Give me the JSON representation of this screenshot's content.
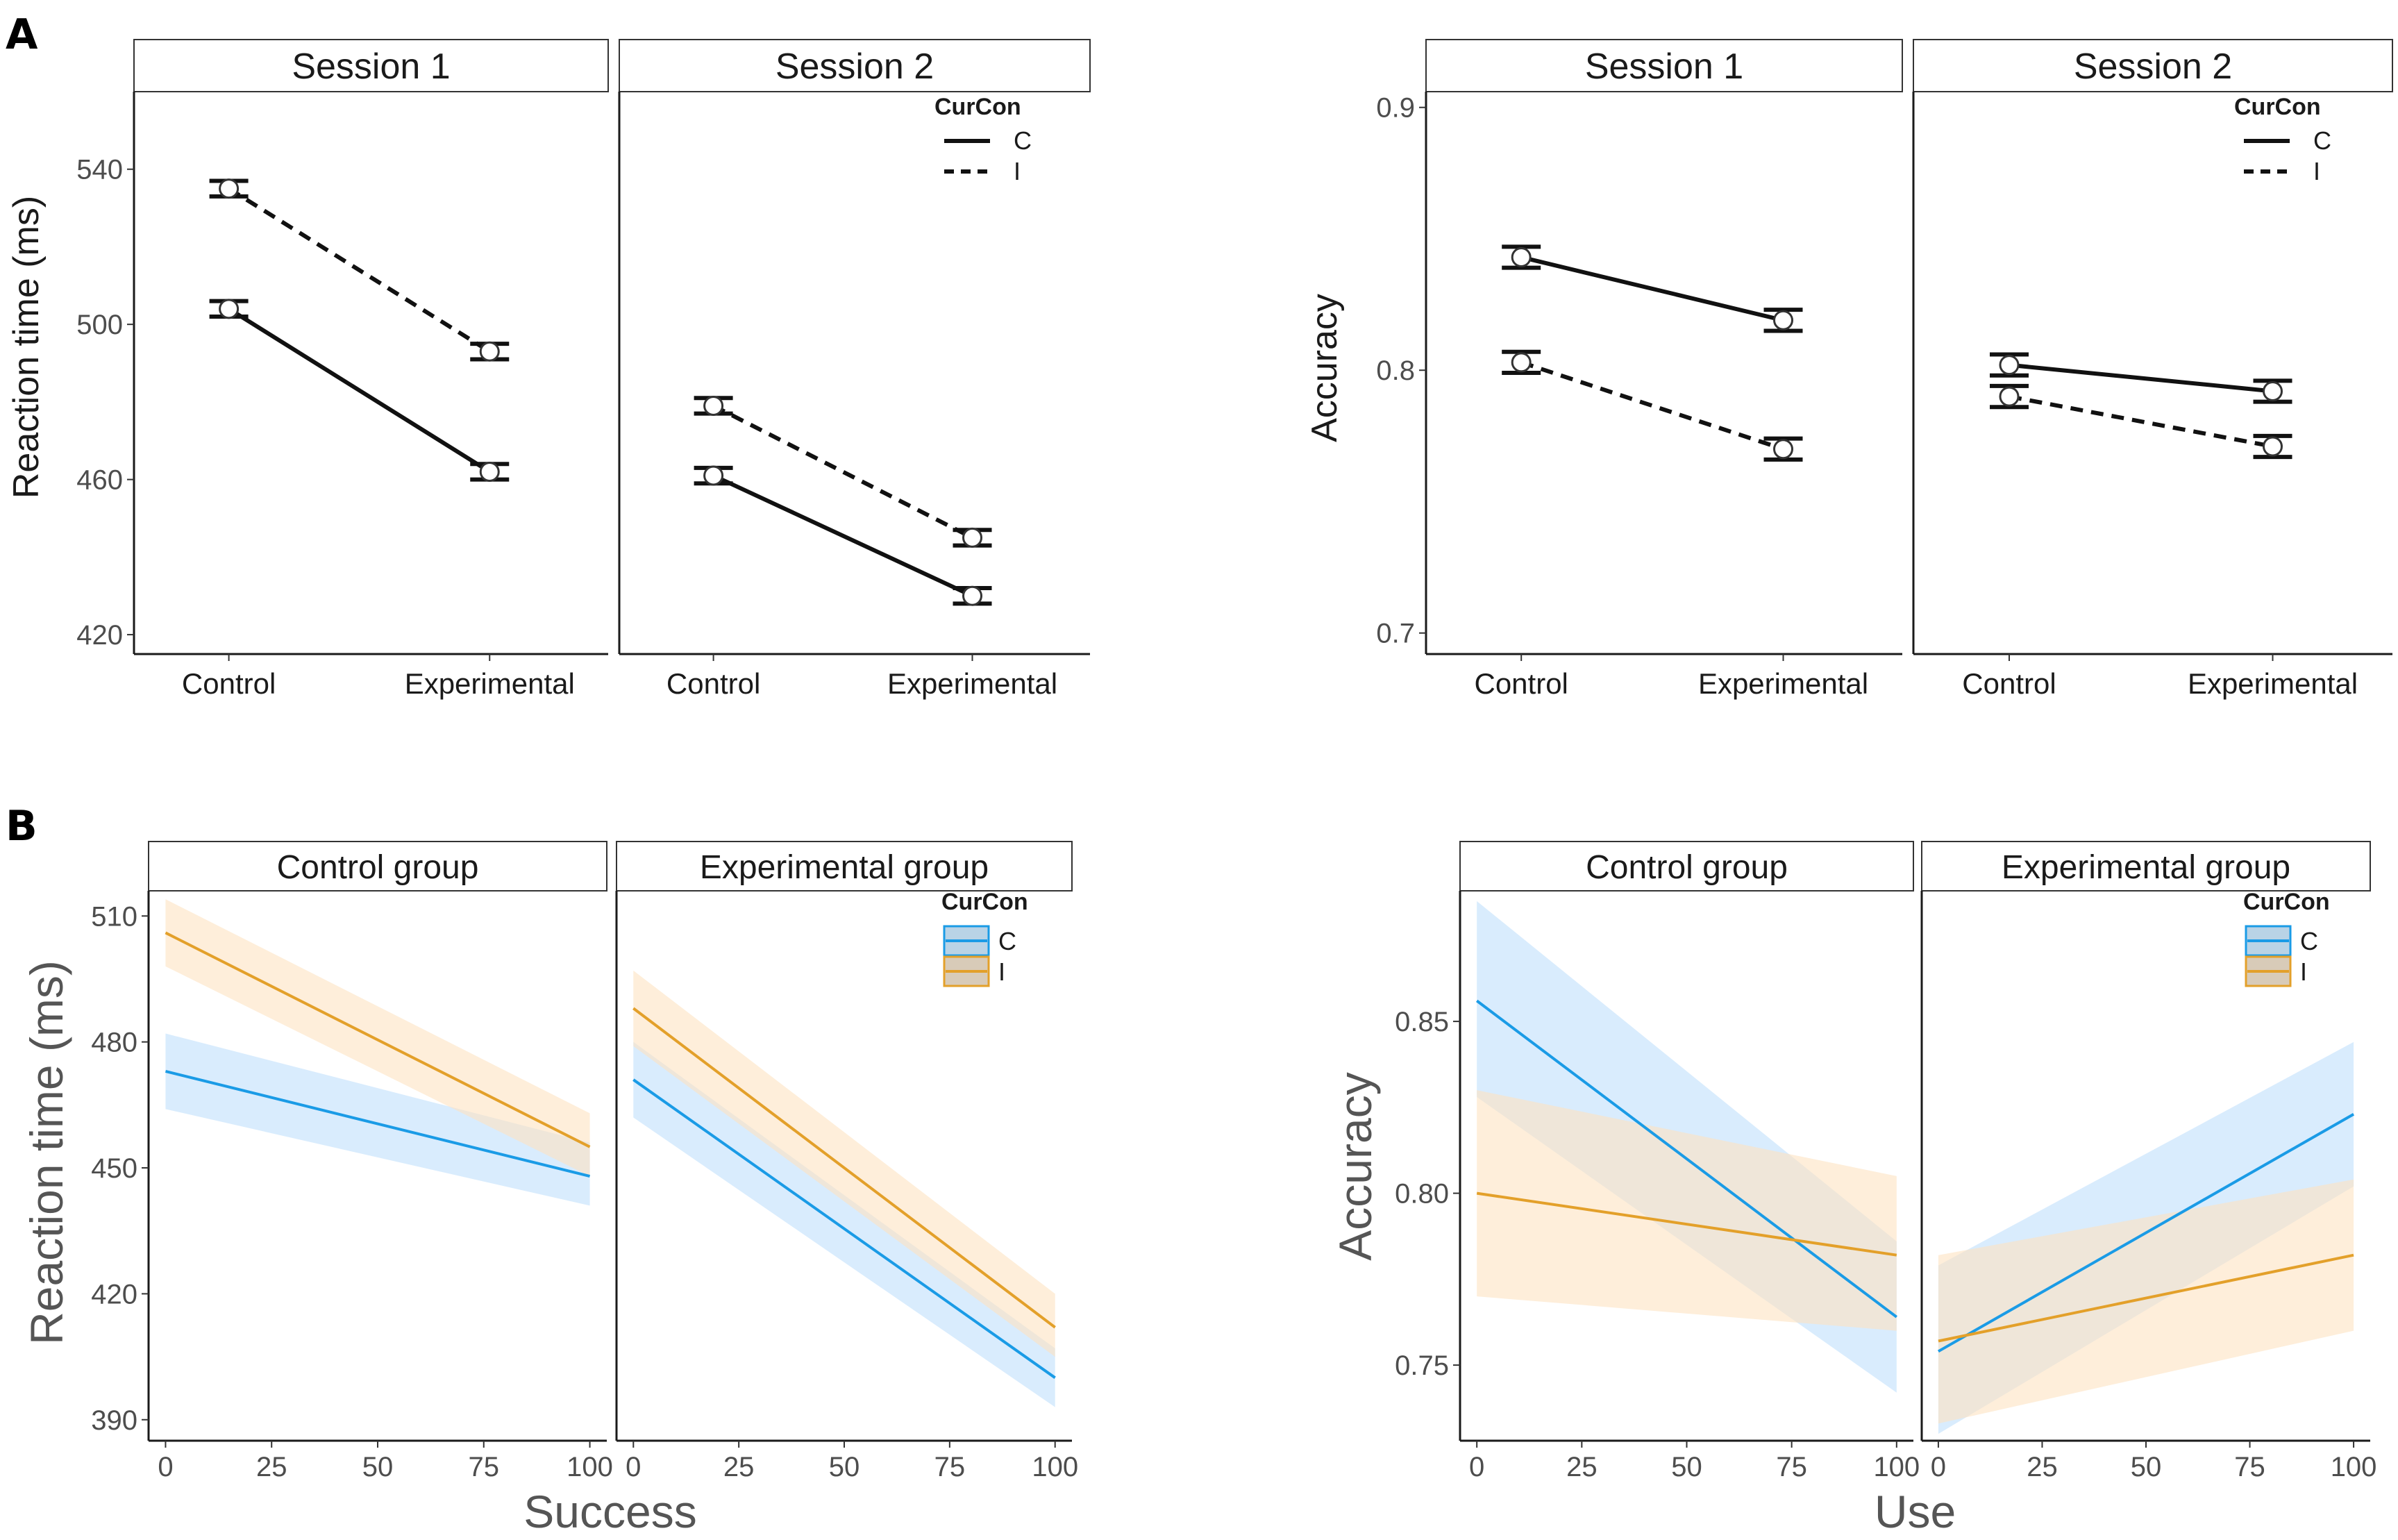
{
  "panel_labels": [
    "A",
    "B"
  ],
  "chart_data": [
    {
      "id": "A-rt",
      "type": "line",
      "ylabel": "Reaction time (ms)",
      "xlabel": "",
      "ylim": [
        415,
        560
      ],
      "yticks": [
        420,
        460,
        500,
        540
      ],
      "categories": [
        "Control",
        "Experimental"
      ],
      "facets": [
        "Session 1",
        "Session 2"
      ],
      "legend": {
        "title": "CurCon",
        "entries": [
          "C",
          "I"
        ],
        "position": "top-right"
      },
      "series": [
        {
          "name": "C",
          "style": "solid",
          "facet": "Session 1",
          "values": [
            504,
            462
          ],
          "errors": [
            2,
            2
          ]
        },
        {
          "name": "I",
          "style": "dashed",
          "facet": "Session 1",
          "values": [
            535,
            493
          ],
          "errors": [
            2,
            2
          ]
        },
        {
          "name": "C",
          "style": "solid",
          "facet": "Session 2",
          "values": [
            461,
            430
          ],
          "errors": [
            2,
            2
          ]
        },
        {
          "name": "I",
          "style": "dashed",
          "facet": "Session 2",
          "values": [
            479,
            445
          ],
          "errors": [
            2,
            2
          ]
        }
      ]
    },
    {
      "id": "A-acc",
      "type": "line",
      "ylabel": "Accuracy",
      "xlabel": "",
      "ylim": [
        0.692,
        0.906
      ],
      "yticks": [
        "0.7",
        "0.8",
        "0.9"
      ],
      "categories": [
        "Control",
        "Experimental"
      ],
      "facets": [
        "Session 1",
        "Session 2"
      ],
      "legend": {
        "title": "CurCon",
        "entries": [
          "C",
          "I"
        ],
        "position": "top-right"
      },
      "series": [
        {
          "name": "C",
          "style": "solid",
          "facet": "Session 1",
          "values": [
            0.843,
            0.819
          ],
          "errors": [
            0.004,
            0.004
          ]
        },
        {
          "name": "I",
          "style": "dashed",
          "facet": "Session 1",
          "values": [
            0.803,
            0.77
          ],
          "errors": [
            0.004,
            0.004
          ]
        },
        {
          "name": "C",
          "style": "solid",
          "facet": "Session 2",
          "values": [
            0.802,
            0.792
          ],
          "errors": [
            0.004,
            0.004
          ]
        },
        {
          "name": "I",
          "style": "dashed",
          "facet": "Session 2",
          "values": [
            0.79,
            0.771
          ],
          "errors": [
            0.004,
            0.004
          ]
        }
      ]
    },
    {
      "id": "B-rt",
      "type": "line",
      "ylabel": "Reaction time (ms)",
      "xlabel": "Success",
      "xlim": [
        -4,
        104
      ],
      "xticks": [
        "0",
        "25",
        "50",
        "75",
        "100"
      ],
      "ylim": [
        385,
        516
      ],
      "yticks": [
        "390",
        "420",
        "450",
        "480",
        "510"
      ],
      "facets": [
        "Control group",
        "Experimental group"
      ],
      "legend": {
        "title": "CurCon",
        "entries": [
          "C",
          "I"
        ],
        "position": "top-right"
      },
      "series": [
        {
          "name": "C",
          "color": "#1a9be6",
          "facet": "Control group",
          "x": [
            0,
            100
          ],
          "y": [
            473,
            448
          ],
          "lower": [
            464,
            441
          ],
          "upper": [
            482,
            456
          ]
        },
        {
          "name": "I",
          "color": "#e3a02a",
          "facet": "Control group",
          "x": [
            0,
            100
          ],
          "y": [
            506,
            455
          ],
          "lower": [
            498,
            448
          ],
          "upper": [
            514,
            463
          ]
        },
        {
          "name": "C",
          "color": "#1a9be6",
          "facet": "Experimental group",
          "x": [
            0,
            100
          ],
          "y": [
            471,
            400
          ],
          "lower": [
            462,
            393
          ],
          "upper": [
            480,
            407
          ]
        },
        {
          "name": "I",
          "color": "#e3a02a",
          "facet": "Experimental group",
          "x": [
            0,
            100
          ],
          "y": [
            488,
            412
          ],
          "lower": [
            479,
            405
          ],
          "upper": [
            497,
            420
          ]
        }
      ]
    },
    {
      "id": "B-acc",
      "type": "line",
      "ylabel": "Accuracy",
      "xlabel": "Use",
      "xlim": [
        -4,
        104
      ],
      "xticks": [
        "0",
        "25",
        "50",
        "75",
        "100"
      ],
      "ylim": [
        0.728,
        0.888
      ],
      "yticks": [
        "0.75",
        "0.80",
        "0.85"
      ],
      "facets": [
        "Control group",
        "Experimental group"
      ],
      "legend": {
        "title": "CurCon",
        "entries": [
          "C",
          "I"
        ],
        "position": "top-right"
      },
      "series": [
        {
          "name": "C",
          "color": "#1a9be6",
          "facet": "Control group",
          "x": [
            0,
            100
          ],
          "y": [
            0.856,
            0.764
          ],
          "lower": [
            0.828,
            0.742
          ],
          "upper": [
            0.885,
            0.786
          ]
        },
        {
          "name": "I",
          "color": "#e3a02a",
          "facet": "Control group",
          "x": [
            0,
            100
          ],
          "y": [
            0.8,
            0.782
          ],
          "lower": [
            0.77,
            0.76
          ],
          "upper": [
            0.83,
            0.805
          ]
        },
        {
          "name": "C",
          "color": "#1a9be6",
          "facet": "Experimental group",
          "x": [
            0,
            100
          ],
          "y": [
            0.754,
            0.823
          ],
          "lower": [
            0.73,
            0.802
          ],
          "upper": [
            0.779,
            0.844
          ]
        },
        {
          "name": "I",
          "color": "#e3a02a",
          "facet": "Experimental group",
          "x": [
            0,
            100
          ],
          "y": [
            0.757,
            0.782
          ],
          "lower": [
            0.733,
            0.76
          ],
          "upper": [
            0.782,
            0.804
          ]
        }
      ]
    }
  ]
}
